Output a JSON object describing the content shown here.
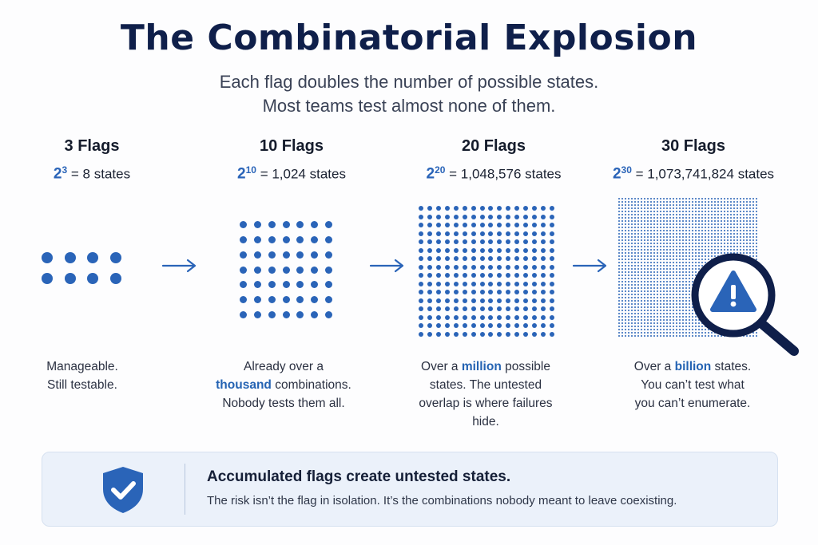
{
  "title": "The Combinatorial Explosion",
  "subtitle": {
    "line1": "Each flag doubles the number of possible states.",
    "line2": "Most teams test almost none of them."
  },
  "columns": [
    {
      "heading": "3 Flags",
      "base": "2",
      "exponent": "3",
      "equals": " = 8 states",
      "grid_rows": 2,
      "grid_cols": 4,
      "desc": [
        [
          {
            "t": "Manageable."
          }
        ],
        [
          {
            "t": "Still testable."
          }
        ]
      ]
    },
    {
      "heading": "10 Flags",
      "base": "2",
      "exponent": "10",
      "equals": " = 1,024 states",
      "grid_rows": 7,
      "grid_cols": 7,
      "desc": [
        [
          {
            "t": "Already over a"
          }
        ],
        [
          {
            "t": "thousand",
            "hl": true
          },
          {
            "t": " combinations."
          }
        ],
        [
          {
            "t": "Nobody tests them all."
          }
        ]
      ]
    },
    {
      "heading": "20 Flags",
      "base": "2",
      "exponent": "20",
      "equals": " = 1,048,576 states",
      "grid_rows": 16,
      "grid_cols": 16,
      "desc": [
        [
          {
            "t": "Over a "
          },
          {
            "t": "million",
            "hl": true
          },
          {
            "t": " possible"
          }
        ],
        [
          {
            "t": "states. The untested"
          }
        ],
        [
          {
            "t": "overlap is where failures"
          }
        ],
        [
          {
            "t": "hide."
          }
        ]
      ]
    },
    {
      "heading": "30 Flags",
      "base": "2",
      "exponent": "30",
      "equals": " = 1,073,741,824 states",
      "grid_rows": 44,
      "grid_cols": 44,
      "desc": [
        [
          {
            "t": "Over a "
          },
          {
            "t": "billion",
            "hl": true
          },
          {
            "t": " states."
          }
        ],
        [
          {
            "t": "You can’t test what"
          }
        ],
        [
          {
            "t": "you can’t enumerate."
          }
        ]
      ]
    }
  ],
  "magnifier_icon": "warning-magnifier-icon",
  "banner": {
    "icon": "shield-check-icon",
    "title": "Accumulated flags create untested states.",
    "body": "The risk isn’t the flag in isolation. It’s the combinations nobody meant to leave coexisting."
  },
  "colors": {
    "accent": "#2a64b8",
    "navy": "#0f1f4a",
    "banner_bg": "#ebf1fa"
  }
}
